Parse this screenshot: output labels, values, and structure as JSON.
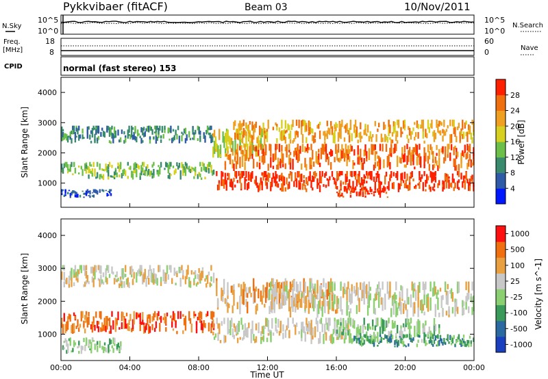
{
  "header": {
    "station": "Pykkvibaer (fitACF)",
    "beam": "Beam 03",
    "date": "10/Nov/2011"
  },
  "status_panel": {
    "left_labels": [
      "N.Sky",
      "Freq.",
      "[MHz]",
      "CPID"
    ],
    "nsky_ticks": [
      "10^5",
      "10^0"
    ],
    "freq_ticks": [
      "18",
      "8"
    ],
    "right_labels": [
      "N.Search",
      "Nave"
    ],
    "nsearch_ticks": [
      "10^5",
      "10^0"
    ],
    "nave_ticks": [
      "60",
      "0"
    ],
    "cpid_text": "normal (fast stereo) 153"
  },
  "chart_data": [
    {
      "type": "heatmap",
      "title": "",
      "quantity": "Power",
      "xlabel": "",
      "ylabel": "Slant Range [km]",
      "x_range_hours": [
        0,
        24
      ],
      "ylim": [
        200,
        4500
      ],
      "y_ticks": [
        1000,
        2000,
        3000,
        4000
      ],
      "colorbar": {
        "label": "Power [dB]",
        "ticks": [
          "4",
          "8",
          "12",
          "16",
          "20",
          "24",
          "28"
        ],
        "range": [
          0,
          32
        ],
        "colors": [
          "#0018ff",
          "#2e5aa8",
          "#3a8a6e",
          "#6cc04a",
          "#d8d020",
          "#f0a020",
          "#f07010",
          "#ff2000"
        ]
      },
      "bands": [
        {
          "t0": 0.0,
          "t1": 8.9,
          "r0": 2300,
          "r1": 2900,
          "level": 2
        },
        {
          "t0": 0.0,
          "t1": 8.9,
          "r0": 1100,
          "r1": 1700,
          "level": 3
        },
        {
          "t0": 0.0,
          "t1": 3.0,
          "r0": 500,
          "r1": 800,
          "level": 1
        },
        {
          "t0": 8.8,
          "t1": 12.0,
          "r0": 1800,
          "r1": 2800,
          "level": 4
        },
        {
          "t0": 9.0,
          "t1": 24.0,
          "r0": 700,
          "r1": 1400,
          "level": 7
        },
        {
          "t0": 9.5,
          "t1": 24.0,
          "r0": 1400,
          "r1": 2300,
          "level": 6
        },
        {
          "t0": 10.0,
          "t1": 24.0,
          "r0": 2300,
          "r1": 3100,
          "level": 5
        },
        {
          "t0": 16.0,
          "t1": 19.0,
          "r0": 500,
          "r1": 900,
          "level": 7
        }
      ]
    },
    {
      "type": "heatmap",
      "title": "",
      "quantity": "Velocity",
      "xlabel": "Time UT",
      "ylabel": "Slant Range [km]",
      "x_range_hours": [
        0,
        24
      ],
      "x_ticks": [
        "00:00",
        "04:00",
        "08:00",
        "12:00",
        "16:00",
        "20:00",
        "00:00"
      ],
      "ylim": [
        200,
        4500
      ],
      "y_ticks": [
        1000,
        2000,
        3000,
        4000
      ],
      "colorbar": {
        "label": "Velocity [m s^-1]",
        "ticks": [
          "1000",
          "500",
          "100",
          "25",
          "-25",
          "-100",
          "-500",
          "-1000"
        ],
        "range": [
          -1200,
          1200
        ],
        "colors": [
          "#1a40c0",
          "#2a6aa0",
          "#3a9a5a",
          "#8ad070",
          "#c8c8c8",
          "#e8a040",
          "#f07010",
          "#ff1010"
        ]
      },
      "bands": [
        {
          "t0": 0.0,
          "t1": 8.9,
          "r0": 2400,
          "r1": 3100,
          "level": 4
        },
        {
          "t0": 0.0,
          "t1": 8.9,
          "r0": 1000,
          "r1": 1700,
          "level": 6
        },
        {
          "t0": 0.0,
          "t1": 3.5,
          "r0": 400,
          "r1": 900,
          "level": 3
        },
        {
          "t0": 8.8,
          "t1": 17.0,
          "r0": 700,
          "r1": 1500,
          "level": 4
        },
        {
          "t0": 9.0,
          "t1": 16.0,
          "r0": 1600,
          "r1": 2700,
          "level": 5
        },
        {
          "t0": 16.0,
          "t1": 22.0,
          "r0": 700,
          "r1": 1500,
          "level": 3
        },
        {
          "t0": 17.0,
          "t1": 24.0,
          "r0": 600,
          "r1": 1000,
          "level": 2
        },
        {
          "t0": 12.0,
          "t1": 24.0,
          "r0": 1500,
          "r1": 2600,
          "level": 4
        }
      ]
    }
  ]
}
